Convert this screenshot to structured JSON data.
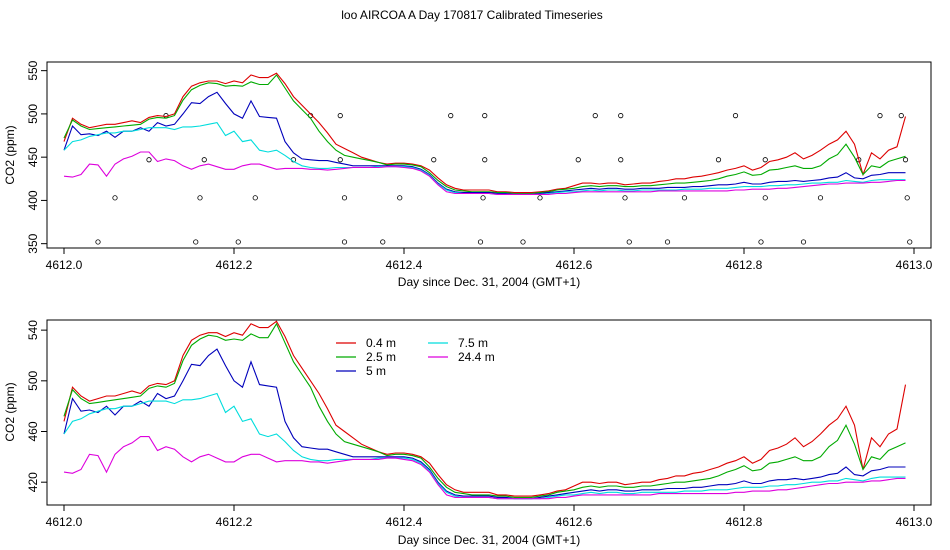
{
  "page_title": "loo AIRCOA A  Day 170817  Calibrated Timeseries",
  "chart_data": [
    {
      "type": "line",
      "xlabel": "Day since Dec. 31, 2004 (GMT+1)",
      "ylabel": "CO2 (ppm)",
      "xlim": [
        4611.98,
        4613.02
      ],
      "ylim": [
        345,
        560
      ],
      "xticks": [
        4612.0,
        4612.2,
        4612.4,
        4612.6,
        4612.8,
        4613.0
      ],
      "xtick_labels": [
        "4612.0",
        "4612.2",
        "4612.4",
        "4612.6",
        "4612.8",
        "4613.0"
      ],
      "yticks": [
        350,
        400,
        450,
        500,
        550
      ],
      "ytick_labels": [
        "350",
        "400",
        "450",
        "500",
        "550"
      ],
      "grid": false,
      "legend": "none",
      "x": [
        4612.0,
        4612.01,
        4612.02,
        4612.03,
        4612.04,
        4612.05,
        4612.06,
        4612.07,
        4612.08,
        4612.09,
        4612.1,
        4612.11,
        4612.12,
        4612.13,
        4612.14,
        4612.15,
        4612.16,
        4612.17,
        4612.18,
        4612.19,
        4612.2,
        4612.21,
        4612.22,
        4612.23,
        4612.24,
        4612.25,
        4612.26,
        4612.27,
        4612.28,
        4612.29,
        4612.3,
        4612.31,
        4612.32,
        4612.33,
        4612.34,
        4612.35,
        4612.36,
        4612.37,
        4612.38,
        4612.39,
        4612.4,
        4612.41,
        4612.42,
        4612.43,
        4612.44,
        4612.45,
        4612.46,
        4612.47,
        4612.48,
        4612.49,
        4612.5,
        4612.51,
        4612.52,
        4612.53,
        4612.54,
        4612.55,
        4612.56,
        4612.57,
        4612.58,
        4612.59,
        4612.6,
        4612.61,
        4612.62,
        4612.63,
        4612.64,
        4612.65,
        4612.66,
        4612.67,
        4612.68,
        4612.69,
        4612.7,
        4612.71,
        4612.72,
        4612.73,
        4612.74,
        4612.75,
        4612.76,
        4612.77,
        4612.78,
        4612.79,
        4612.8,
        4612.81,
        4612.82,
        4612.83,
        4612.84,
        4612.85,
        4612.86,
        4612.87,
        4612.88,
        4612.89,
        4612.9,
        4612.91,
        4612.92,
        4612.93,
        4612.94,
        4612.95,
        4612.96,
        4612.97,
        4612.98,
        4612.99
      ],
      "series": [
        {
          "color": "#dd0000",
          "values": [
            468,
            495,
            488,
            484,
            486,
            488,
            488,
            490,
            492,
            490,
            496,
            498,
            497,
            500,
            520,
            532,
            536,
            538,
            538,
            535,
            538,
            536,
            545,
            542,
            542,
            547,
            535,
            520,
            510,
            500,
            490,
            478,
            465,
            460,
            455,
            450,
            447,
            444,
            442,
            443,
            443,
            442,
            440,
            435,
            426,
            418,
            414,
            412,
            412,
            412,
            412,
            410,
            410,
            409,
            409,
            409,
            410,
            411,
            413,
            414,
            417,
            420,
            420,
            419,
            420,
            420,
            418,
            419,
            420,
            420,
            422,
            423,
            425,
            425,
            427,
            428,
            430,
            432,
            435,
            437,
            440,
            435,
            438,
            445,
            447,
            450,
            455,
            448,
            452,
            458,
            465,
            470,
            480,
            465,
            430,
            455,
            448,
            458,
            462,
            497
          ]
        },
        {
          "color": "#00aa00",
          "values": [
            472,
            493,
            486,
            482,
            483,
            484,
            485,
            486,
            487,
            488,
            494,
            496,
            495,
            498,
            516,
            528,
            533,
            536,
            535,
            532,
            533,
            532,
            537,
            534,
            534,
            545,
            530,
            515,
            505,
            495,
            480,
            468,
            458,
            452,
            450,
            448,
            446,
            444,
            441,
            442,
            442,
            441,
            439,
            432,
            423,
            416,
            412,
            411,
            410,
            410,
            410,
            409,
            409,
            408,
            408,
            408,
            409,
            410,
            412,
            413,
            414,
            416,
            417,
            416,
            417,
            417,
            416,
            416,
            417,
            417,
            418,
            419,
            420,
            420,
            421,
            422,
            423,
            425,
            428,
            430,
            433,
            429,
            430,
            435,
            436,
            438,
            440,
            437,
            437,
            440,
            448,
            453,
            465,
            450,
            430,
            440,
            438,
            445,
            448,
            451
          ]
        },
        {
          "color": "#0000bb",
          "values": [
            458,
            486,
            476,
            477,
            475,
            480,
            473,
            480,
            480,
            484,
            480,
            490,
            486,
            488,
            500,
            513,
            512,
            520,
            525,
            512,
            500,
            495,
            515,
            497,
            496,
            495,
            468,
            455,
            448,
            447,
            446,
            446,
            444,
            442,
            440,
            440,
            440,
            440,
            440,
            440,
            440,
            439,
            436,
            430,
            420,
            413,
            410,
            409,
            409,
            409,
            409,
            408,
            408,
            407,
            407,
            407,
            408,
            409,
            410,
            411,
            412,
            413,
            414,
            413,
            414,
            414,
            413,
            413,
            414,
            414,
            414,
            415,
            415,
            415,
            416,
            416,
            417,
            418,
            418,
            419,
            421,
            419,
            419,
            421,
            422,
            422,
            423,
            422,
            423,
            424,
            426,
            427,
            432,
            426,
            425,
            429,
            430,
            432,
            432,
            432
          ]
        },
        {
          "color": "#00dddd",
          "values": [
            458,
            468,
            470,
            474,
            476,
            478,
            478,
            480,
            480,
            482,
            484,
            484,
            484,
            482,
            485,
            485,
            486,
            488,
            490,
            475,
            480,
            468,
            470,
            458,
            456,
            458,
            452,
            445,
            440,
            438,
            437,
            437,
            438,
            438,
            438,
            438,
            438,
            439,
            439,
            439,
            439,
            438,
            435,
            429,
            419,
            412,
            409,
            408,
            408,
            408,
            408,
            407,
            407,
            407,
            407,
            407,
            407,
            408,
            409,
            410,
            410,
            411,
            412,
            411,
            412,
            412,
            411,
            411,
            412,
            412,
            412,
            412,
            412,
            413,
            413,
            413,
            414,
            414,
            414,
            415,
            416,
            416,
            416,
            417,
            417,
            418,
            418,
            419,
            420,
            420,
            421,
            421,
            423,
            422,
            421,
            423,
            424,
            424,
            424,
            424
          ]
        },
        {
          "color": "#dd00dd",
          "values": [
            428,
            427,
            430,
            442,
            441,
            428,
            442,
            448,
            451,
            456,
            456,
            445,
            448,
            446,
            440,
            436,
            440,
            442,
            439,
            436,
            436,
            440,
            442,
            442,
            439,
            436,
            437,
            437,
            437,
            436,
            436,
            435,
            436,
            437,
            438,
            438,
            438,
            438,
            439,
            439,
            438,
            437,
            434,
            428,
            418,
            410,
            408,
            408,
            408,
            408,
            408,
            407,
            407,
            407,
            407,
            407,
            407,
            407,
            408,
            408,
            409,
            410,
            410,
            410,
            410,
            410,
            410,
            410,
            410,
            410,
            411,
            411,
            411,
            411,
            411,
            411,
            411,
            411,
            411,
            412,
            412,
            413,
            413,
            413,
            414,
            414,
            415,
            416,
            417,
            418,
            419,
            419,
            420,
            420,
            420,
            421,
            421,
            422,
            423,
            423
          ]
        }
      ],
      "markers": {
        "x": [
          4612.04,
          4612.06,
          4612.1,
          4612.12,
          4612.155,
          4612.16,
          4612.165,
          4612.205,
          4612.225,
          4612.27,
          4612.29,
          4612.325,
          4612.325,
          4612.33,
          4612.33,
          4612.375,
          4612.395,
          4612.435,
          4612.455,
          4612.49,
          4612.493,
          4612.495,
          4612.495,
          4612.54,
          4612.56,
          4612.605,
          4612.625,
          4612.655,
          4612.655,
          4612.66,
          4612.665,
          4612.71,
          4612.73,
          4612.77,
          4612.79,
          4612.82,
          4612.825,
          4612.825,
          4612.87,
          4612.89,
          4612.935,
          4612.96,
          4612.985,
          4612.99,
          4612.992,
          4612.995
        ],
        "y": [
          352,
          403,
          447,
          498,
          352,
          403,
          447,
          352,
          403,
          447,
          498,
          498,
          447,
          403,
          352,
          352,
          403,
          447,
          498,
          352,
          403,
          447,
          498,
          352,
          403,
          447,
          498,
          498,
          447,
          403,
          352,
          352,
          403,
          447,
          498,
          352,
          403,
          447,
          352,
          403,
          447,
          498,
          498,
          447,
          403,
          352
        ]
      }
    },
    {
      "type": "line",
      "xlabel": "Day since Dec. 31, 2004 (GMT+1)",
      "ylabel": "CO2 (ppm)",
      "xlim": [
        4611.98,
        4613.02
      ],
      "ylim": [
        402,
        548
      ],
      "xticks": [
        4612.0,
        4612.2,
        4612.4,
        4612.6,
        4612.8,
        4613.0
      ],
      "xtick_labels": [
        "4612.0",
        "4612.2",
        "4612.4",
        "4612.6",
        "4612.8",
        "4613.0"
      ],
      "yticks": [
        420,
        460,
        500,
        540
      ],
      "ytick_labels": [
        "420",
        "460",
        "500",
        "540"
      ],
      "grid": false,
      "legend": "top-left",
      "legend_entries": [
        {
          "label": "0.4 m",
          "color": "#dd0000"
        },
        {
          "label": "2.5 m",
          "color": "#00aa00"
        },
        {
          "label": "5 m",
          "color": "#0000bb"
        },
        {
          "label": "7.5 m",
          "color": "#00dddd"
        },
        {
          "label": "24.4 m",
          "color": "#dd00dd"
        }
      ],
      "series_ref": "same values as chart 1 (x and series identical)"
    }
  ]
}
